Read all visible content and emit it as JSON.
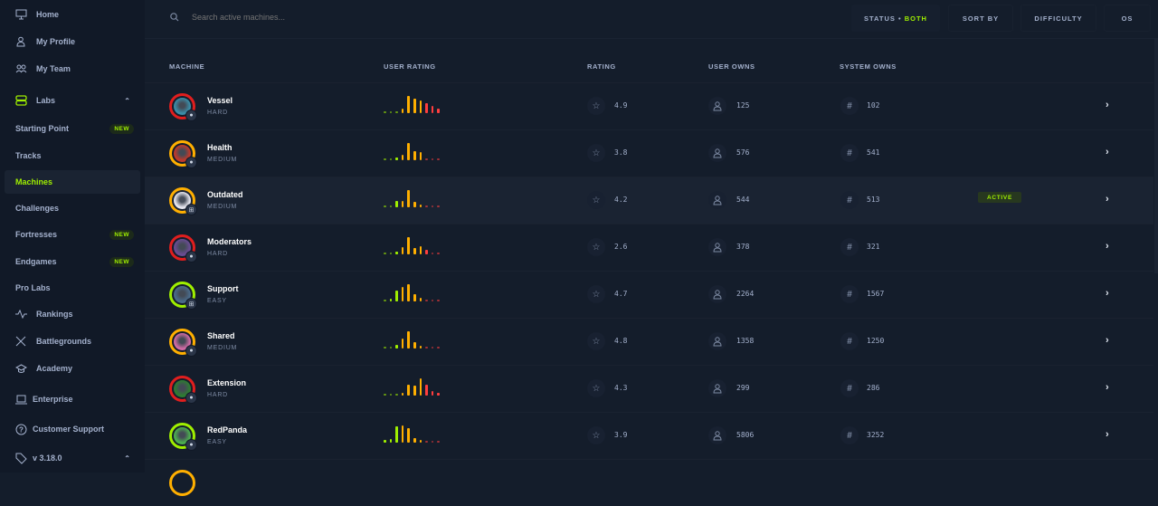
{
  "sidebar": {
    "items": [
      {
        "label": "Home",
        "icon": "monitor-icon"
      },
      {
        "label": "My Profile",
        "icon": "user-icon"
      },
      {
        "label": "My Team",
        "icon": "users-icon"
      },
      {
        "label": "Labs",
        "icon": "server-icon"
      },
      {
        "label": "Starting Point",
        "badge": "NEW"
      },
      {
        "label": "Tracks"
      },
      {
        "label": "Machines"
      },
      {
        "label": "Challenges"
      },
      {
        "label": "Fortresses",
        "badge": "NEW"
      },
      {
        "label": "Endgames",
        "badge": "NEW"
      },
      {
        "label": "Pro Labs"
      },
      {
        "label": "Rankings",
        "icon": "activity-icon"
      },
      {
        "label": "Battlegrounds",
        "icon": "swords-icon"
      },
      {
        "label": "Academy",
        "icon": "graduation-cap-icon"
      },
      {
        "label": "Enterprise",
        "icon": "laptop-icon"
      },
      {
        "label": "Customer Support",
        "icon": "help-circle-icon"
      },
      {
        "label": "v 3.18.0",
        "icon": "tag-icon"
      }
    ]
  },
  "header": {
    "search_placeholder": "Search active machines...",
    "status_label": "STATUS •",
    "status_value": "BOTH",
    "sort_by": "SORT BY",
    "difficulty": "DIFFICULTY",
    "os": "OS"
  },
  "table": {
    "columns": [
      "MACHINE",
      "USER RATING",
      "RATING",
      "USER OWNS",
      "SYSTEM OWNS"
    ],
    "colors": {
      "green": "#9fef00",
      "orange": "#ffaf00",
      "red": "#ff3e3e",
      "easy": "#9fef00",
      "medium": "#ffaf00",
      "hard": "#e01e1e"
    },
    "rows": [
      {
        "name": "Vessel",
        "difficulty": "HARD",
        "os": "linux",
        "rating": "4.9",
        "user_owns": "125",
        "system_owns": "102",
        "dist": [
          1,
          1,
          1,
          3,
          12,
          10,
          9,
          7,
          5,
          3
        ]
      },
      {
        "name": "Health",
        "difficulty": "MEDIUM",
        "os": "linux",
        "rating": "3.8",
        "user_owns": "576",
        "system_owns": "541",
        "dist": [
          1,
          1,
          2,
          4,
          13,
          7,
          6,
          1,
          1,
          1
        ]
      },
      {
        "name": "Outdated",
        "difficulty": "MEDIUM",
        "os": "windows",
        "rating": "4.2",
        "user_owns": "544",
        "system_owns": "513",
        "status": "ACTIVE",
        "dist": [
          1,
          1,
          5,
          5,
          13,
          4,
          2,
          1,
          1,
          1
        ]
      },
      {
        "name": "Moderators",
        "difficulty": "HARD",
        "os": "linux",
        "rating": "2.6",
        "user_owns": "378",
        "system_owns": "321",
        "dist": [
          1,
          1,
          2,
          6,
          14,
          5,
          7,
          4,
          1,
          1
        ]
      },
      {
        "name": "Support",
        "difficulty": "EASY",
        "os": "windows",
        "rating": "4.7",
        "user_owns": "2264",
        "system_owns": "1567",
        "dist": [
          1,
          2,
          9,
          12,
          14,
          6,
          3,
          1,
          1,
          1
        ]
      },
      {
        "name": "Shared",
        "difficulty": "MEDIUM",
        "os": "linux",
        "rating": "4.8",
        "user_owns": "1358",
        "system_owns": "1250",
        "dist": [
          1,
          1,
          3,
          8,
          14,
          5,
          2,
          1,
          1,
          1
        ]
      },
      {
        "name": "Extension",
        "difficulty": "HARD",
        "os": "linux",
        "rating": "4.3",
        "user_owns": "299",
        "system_owns": "286",
        "dist": [
          1,
          1,
          1,
          2,
          9,
          8,
          14,
          9,
          4,
          2
        ]
      },
      {
        "name": "RedPanda",
        "difficulty": "EASY",
        "os": "linux",
        "rating": "3.9",
        "user_owns": "5806",
        "system_owns": "3252",
        "dist": [
          2,
          3,
          13,
          14,
          12,
          4,
          2,
          1,
          1,
          1
        ]
      }
    ]
  }
}
